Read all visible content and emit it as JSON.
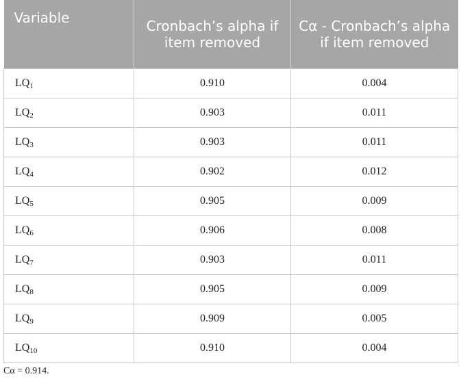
{
  "table": {
    "headers": [
      "Variable",
      "Cronbach’s alpha if item removed",
      "Cα - Cronbach’s alpha if item removed"
    ],
    "rows": [
      {
        "base": "LQ",
        "sub": "1",
        "alpha": "0.910",
        "diff": "0.004"
      },
      {
        "base": "LQ",
        "sub": "2",
        "alpha": "0.903",
        "diff": "0.011"
      },
      {
        "base": "LQ",
        "sub": "3",
        "alpha": "0.903",
        "diff": "0.011"
      },
      {
        "base": "LQ",
        "sub": "4",
        "alpha": "0.902",
        "diff": "0.012"
      },
      {
        "base": "LQ",
        "sub": "5",
        "alpha": "0.905",
        "diff": "0.009"
      },
      {
        "base": "LQ",
        "sub": "6",
        "alpha": "0.906",
        "diff": "0.008"
      },
      {
        "base": "LQ",
        "sub": "7",
        "alpha": "0.903",
        "diff": "0.011"
      },
      {
        "base": "LQ",
        "sub": "8",
        "alpha": "0.905",
        "diff": "0.009"
      },
      {
        "base": "LQ",
        "sub": "9",
        "alpha": "0.909",
        "diff": "0.005"
      },
      {
        "base": "LQ",
        "sub": "10",
        "alpha": "0.910",
        "diff": "0.004"
      }
    ]
  },
  "footnote": "Cα = 0.914."
}
